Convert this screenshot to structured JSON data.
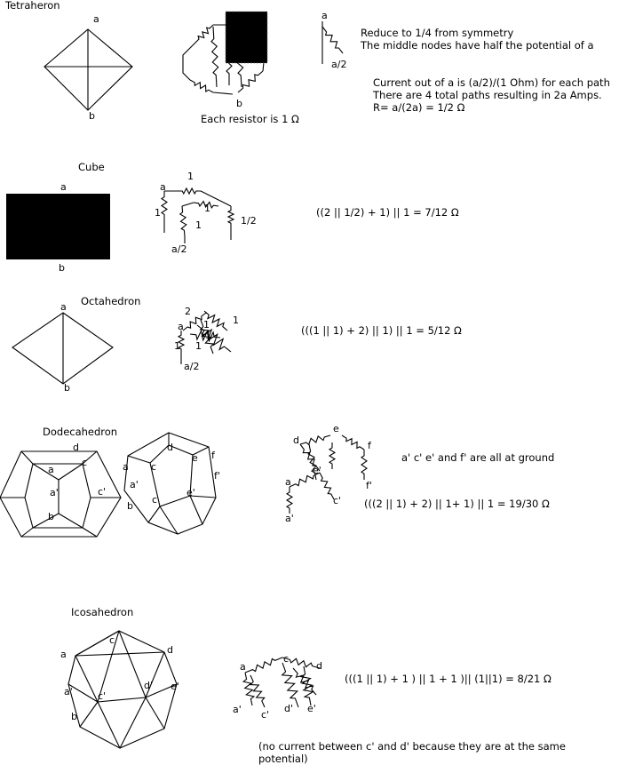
{
  "tetrahedron": {
    "title": "Tetraheron",
    "label_a": "a",
    "label_b": "b",
    "label_a_small": "a",
    "label_b_small": "b",
    "label_a_reduced": "a",
    "label_half": "a/2",
    "caption": "Each resistor is 1 Ω",
    "note1": "Reduce to 1/4 from symmetry",
    "note2": "The middle nodes have half the potential of a",
    "note3": "Current out of a is (a/2)/(1 Ohm) for each path",
    "note4": "There are 4 total paths resulting in 2a Amps.",
    "note5": "R= a/(2a) = 1/2 Ω"
  },
  "cube": {
    "title": "Cube",
    "label_a": "a",
    "label_b": "b",
    "net_a": "a",
    "net_1_top": "1",
    "net_1_mid": "1",
    "net_1_left": "1",
    "net_1_low": "1",
    "net_half": "1/2",
    "net_a_half": "a/2",
    "formula": "((2 || 1/2) + 1) || 1 = 7/12 Ω"
  },
  "octahedron": {
    "title": "Octahedron",
    "label_a": "a",
    "label_b": "b",
    "net_2": "2",
    "net_1_right": "1",
    "net_a": "a",
    "net_1_a": "1",
    "net_1_b": "1",
    "net_1_c": "1",
    "net_1_d": "1",
    "net_a_half": "a/2",
    "formula": "(((1 || 1) + 2) || 1) || 1 = 5/12 Ω"
  },
  "dodecahedron": {
    "title": "Dodecahedron",
    "flat_labels": {
      "d": "d",
      "c": "c",
      "a": "a",
      "a_prime": "a'",
      "c_prime": "c'",
      "b": "b"
    },
    "persp_labels": {
      "d": "d",
      "a": "a",
      "c": "c",
      "e": "e",
      "f": "f",
      "a_prime": "a'",
      "f_prime": "f'",
      "c_low": "c",
      "e_prime": "e'",
      "b": "b"
    },
    "net_labels": {
      "d": "d",
      "e": "e",
      "f": "f",
      "e_prime": "e'",
      "a": "a",
      "c_prime": "c'",
      "f_prime": "f'",
      "a_prime": "a'"
    },
    "ground_note": "a' c' e' and f' are all at ground",
    "formula": "(((2 || 1) + 2) || 1+ 1) || 1 = 19/30 Ω"
  },
  "icosahedron": {
    "title": "Icosahedron",
    "labels": {
      "a": "a",
      "c": "c",
      "d": "d",
      "a_prime": "a'",
      "e_prime": "e'",
      "c_prime": "c'",
      "d_prime": "d'",
      "b": "b"
    },
    "net_labels": {
      "a": "a",
      "c": "c",
      "d": "d",
      "a_prime": "a'",
      "c_prime": "c'",
      "d_prime": "d'",
      "e_prime": "e'"
    },
    "formula": "(((1 || 1) + 1 ) || 1 + 1 )|| (1||1) = 8/21 Ω",
    "note_line1": "(no current between c' and d' because they are at the same",
    "note_line2": "potential)"
  }
}
